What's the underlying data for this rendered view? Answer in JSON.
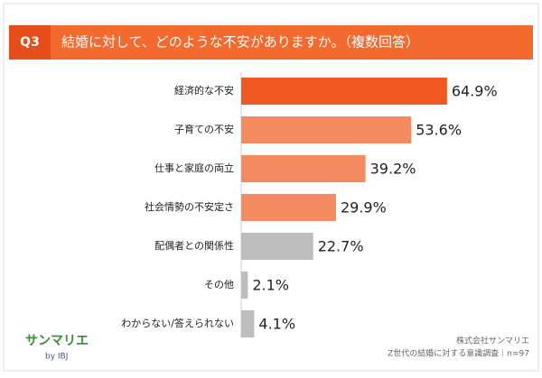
{
  "chart_data": {
    "type": "bar",
    "orientation": "horizontal",
    "question_number": "Q3",
    "title": "結婚に対して、どのような不安がありますか。（複数回答）",
    "categories": [
      "経済的な不安",
      "子育ての不安",
      "仕事と家庭の両立",
      "社会情勢の不安定さ",
      "配偶者との関係性",
      "その他",
      "わからない/答えられない"
    ],
    "values": [
      64.9,
      53.6,
      39.2,
      29.9,
      22.7,
      2.1,
      4.1
    ],
    "value_labels": [
      "64.9%",
      "53.6%",
      "39.2%",
      "29.9%",
      "22.7%",
      "2.1%",
      "4.1%"
    ],
    "colors": [
      "#f05a22",
      "#f58b60",
      "#f58b60",
      "#f58b60",
      "#bdbdbd",
      "#bdbdbd",
      "#bdbdbd"
    ],
    "xlim": [
      0,
      90
    ],
    "source": "株式会社サンマリエ",
    "note": "Z世代の結婚に対する意識調査｜n=97",
    "logo": {
      "name": "サンマリエ",
      "by": "by IBJ"
    }
  }
}
